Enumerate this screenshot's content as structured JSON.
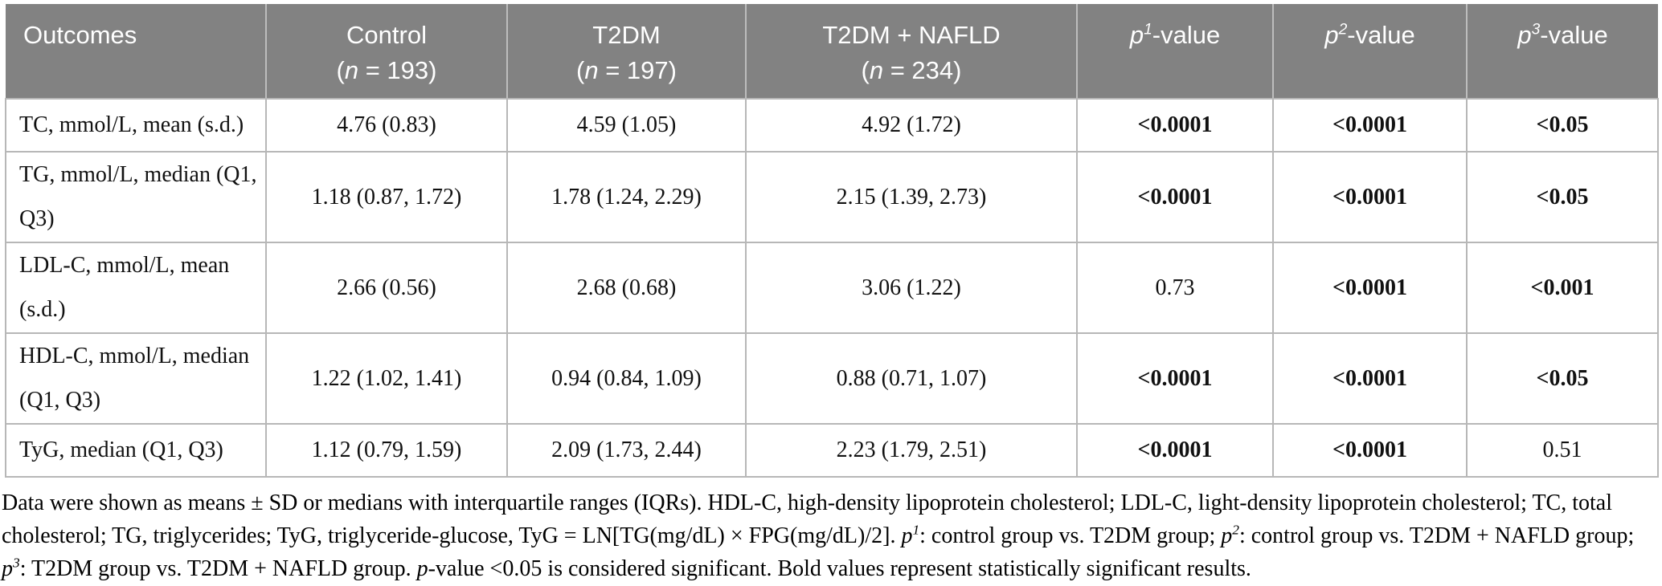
{
  "colors": {
    "header_bg": "#828282",
    "header_text": "#ffffff",
    "border": "#b7b7b7",
    "header_divider": "#bdbdbd"
  },
  "header": {
    "outcomes": "Outcomes",
    "groups": [
      {
        "name": "Control",
        "n_prefix": "(",
        "n_label": "n",
        "n_suffix": " = 193)"
      },
      {
        "name": "T2DM",
        "n_prefix": "(",
        "n_label": "n",
        "n_suffix": " = 197)"
      },
      {
        "name": "T2DM + NAFLD",
        "n_prefix": "(",
        "n_label": "n",
        "n_suffix": " = 234)"
      }
    ],
    "p_columns": [
      {
        "symbol": "p",
        "sup": "1",
        "suffix": "-value"
      },
      {
        "symbol": "p",
        "sup": "2",
        "suffix": "-value"
      },
      {
        "symbol": "p",
        "sup": "3",
        "suffix": "-value"
      }
    ]
  },
  "rows": [
    {
      "outcome": "TC, mmol/L, mean (s.d.)",
      "values": [
        "4.76 (0.83)",
        "4.59 (1.05)",
        "4.92 (1.72)"
      ],
      "p_values": [
        {
          "text": "<0.0001",
          "bold": true
        },
        {
          "text": "<0.0001",
          "bold": true
        },
        {
          "text": "<0.05",
          "bold": true
        }
      ]
    },
    {
      "outcome": "TG, mmol/L, median (Q1, Q3)",
      "values": [
        "1.18 (0.87, 1.72)",
        "1.78 (1.24, 2.29)",
        "2.15 (1.39, 2.73)"
      ],
      "p_values": [
        {
          "text": "<0.0001",
          "bold": true
        },
        {
          "text": "<0.0001",
          "bold": true
        },
        {
          "text": "<0.05",
          "bold": true
        }
      ]
    },
    {
      "outcome": "LDL-C, mmol/L, mean (s.d.)",
      "values": [
        "2.66 (0.56)",
        "2.68 (0.68)",
        "3.06 (1.22)"
      ],
      "p_values": [
        {
          "text": "0.73",
          "bold": false
        },
        {
          "text": "<0.0001",
          "bold": true
        },
        {
          "text": "<0.001",
          "bold": true
        }
      ]
    },
    {
      "outcome": "HDL-C, mmol/L, median (Q1, Q3)",
      "values": [
        "1.22 (1.02, 1.41)",
        "0.94 (0.84, 1.09)",
        "0.88 (0.71, 1.07)"
      ],
      "p_values": [
        {
          "text": "<0.0001",
          "bold": true
        },
        {
          "text": "<0.0001",
          "bold": true
        },
        {
          "text": "<0.05",
          "bold": true
        }
      ]
    },
    {
      "outcome": "TyG, median (Q1, Q3)",
      "values": [
        "1.12 (0.79, 1.59)",
        "2.09 (1.73, 2.44)",
        "2.23 (1.79, 2.51)"
      ],
      "p_values": [
        {
          "text": "<0.0001",
          "bold": true
        },
        {
          "text": "<0.0001",
          "bold": true
        },
        {
          "text": "0.51",
          "bold": false
        }
      ]
    }
  ],
  "footnote": {
    "segments": [
      {
        "text": "Data were shown as means ± SD or medians with interquartile ranges (IQRs). HDL-C, high-density lipoprotein cholesterol; LDL-C, light-density lipoprotein cholesterol; TC, total cholesterol; TG, triglycerides; TyG, triglyceride-glucose, TyG = LN[TG(mg/dL) × FPG(mg/dL)/2]. "
      },
      {
        "text": "p",
        "italic": true
      },
      {
        "text": "1",
        "italic": true,
        "sup": true
      },
      {
        "text": ": control group vs. T2DM group; "
      },
      {
        "text": "p",
        "italic": true
      },
      {
        "text": "2",
        "italic": true,
        "sup": true
      },
      {
        "text": ": control group vs. T2DM + NAFLD group; "
      },
      {
        "text": "p",
        "italic": true
      },
      {
        "text": "3",
        "italic": true,
        "sup": true
      },
      {
        "text": ": T2DM group vs. T2DM + NAFLD group. "
      },
      {
        "text": "p",
        "italic": true
      },
      {
        "text": "-value <0.05 is considered significant. Bold values represent statistically significant results."
      }
    ]
  }
}
